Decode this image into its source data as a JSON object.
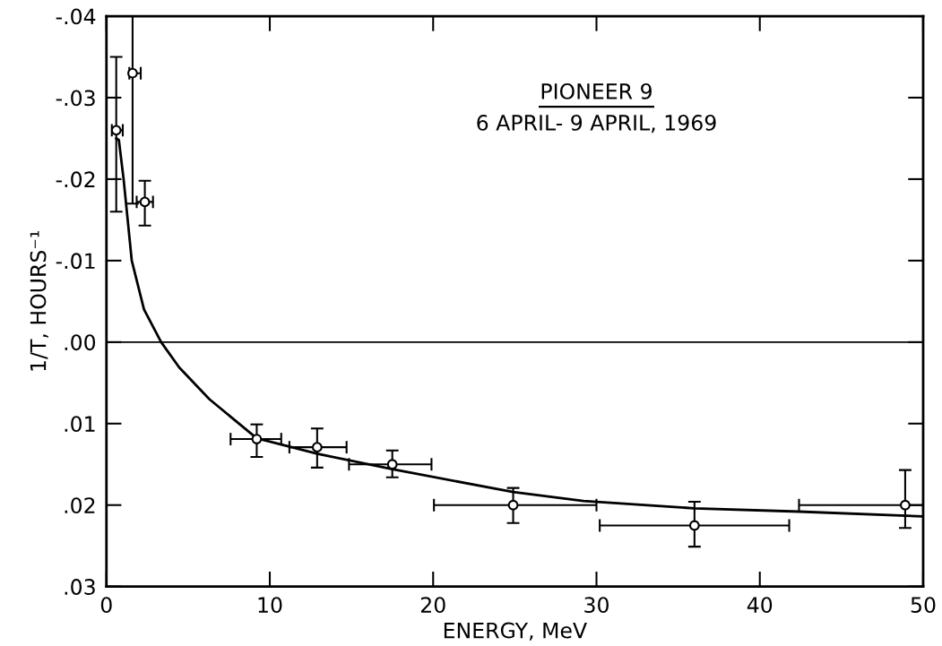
{
  "chart_data": {
    "type": "scatter",
    "xlabel": "ENERGY, MeV",
    "ylabel": "1/T, HOURS⁻¹",
    "annotations": [
      "PIONEER 9",
      "6 APRIL- 9 APRIL, 1969"
    ],
    "xlim": [
      0,
      50
    ],
    "xticks": [
      0,
      10,
      20,
      30,
      40,
      50
    ],
    "ylim": [
      0.03,
      -0.04
    ],
    "yticks": [
      {
        "value": -0.04,
        "label": "-.04"
      },
      {
        "value": -0.03,
        "label": "-.03"
      },
      {
        "value": -0.02,
        "label": "-.02"
      },
      {
        "value": -0.01,
        "label": "-.01"
      },
      {
        "value": 0,
        "label": ".00"
      },
      {
        "value": 0.01,
        "label": ".01"
      },
      {
        "value": 0.02,
        "label": ".02"
      },
      {
        "value": 0.03,
        "label": ".03"
      }
    ],
    "grid": false,
    "ref_lines": [
      {
        "axis": "y",
        "value": 0,
        "color": "#000000",
        "line_style": "solid"
      }
    ],
    "series": [
      {
        "color": "#000000",
        "marker": "circle",
        "x": [
          0.6,
          1.6,
          2.35,
          9.2,
          12.9,
          17.5,
          24.9,
          36.0,
          48.9
        ],
        "values": [
          -0.026,
          -0.033,
          -0.0172,
          0.0119,
          0.0129,
          0.015,
          0.02,
          0.0225,
          0.02
        ],
        "errors": [
          [
            -0.035,
            -0.016
          ],
          [
            -0.04,
            -0.017
          ],
          [
            -0.0198,
            -0.0143
          ],
          [
            0.0101,
            0.0141
          ],
          [
            0.0106,
            0.0154
          ],
          [
            0.0133,
            0.0166
          ],
          [
            0.0179,
            0.0222
          ],
          [
            0.0196,
            0.0251
          ],
          [
            0.0157,
            0.0228
          ]
        ],
        "xerrors": [
          [
            0.33,
            1.0
          ],
          [
            1.4,
            2.1
          ],
          [
            1.85,
            2.85
          ],
          [
            7.6,
            10.7
          ],
          [
            11.2,
            14.7
          ],
          [
            14.85,
            19.9
          ],
          [
            20.05,
            30.0
          ],
          [
            30.2,
            41.8
          ],
          [
            42.4,
            50
          ]
        ]
      },
      {
        "type": "line",
        "color": "#000000",
        "marker": "none",
        "line_style": "solid",
        "x": [
          0.6,
          0.76,
          1.05,
          1.55,
          2.3,
          3.35,
          4.45,
          6.3,
          9.2,
          12.9,
          17.5,
          24.9,
          29.2,
          36.0,
          42.4,
          50
        ],
        "values": [
          -0.025,
          -0.0248,
          -0.02,
          -0.01,
          -0.004,
          0.0,
          0.0031,
          0.007,
          0.0118,
          0.0137,
          0.0156,
          0.0184,
          0.0195,
          0.0204,
          0.0208,
          0.0214
        ]
      }
    ]
  }
}
